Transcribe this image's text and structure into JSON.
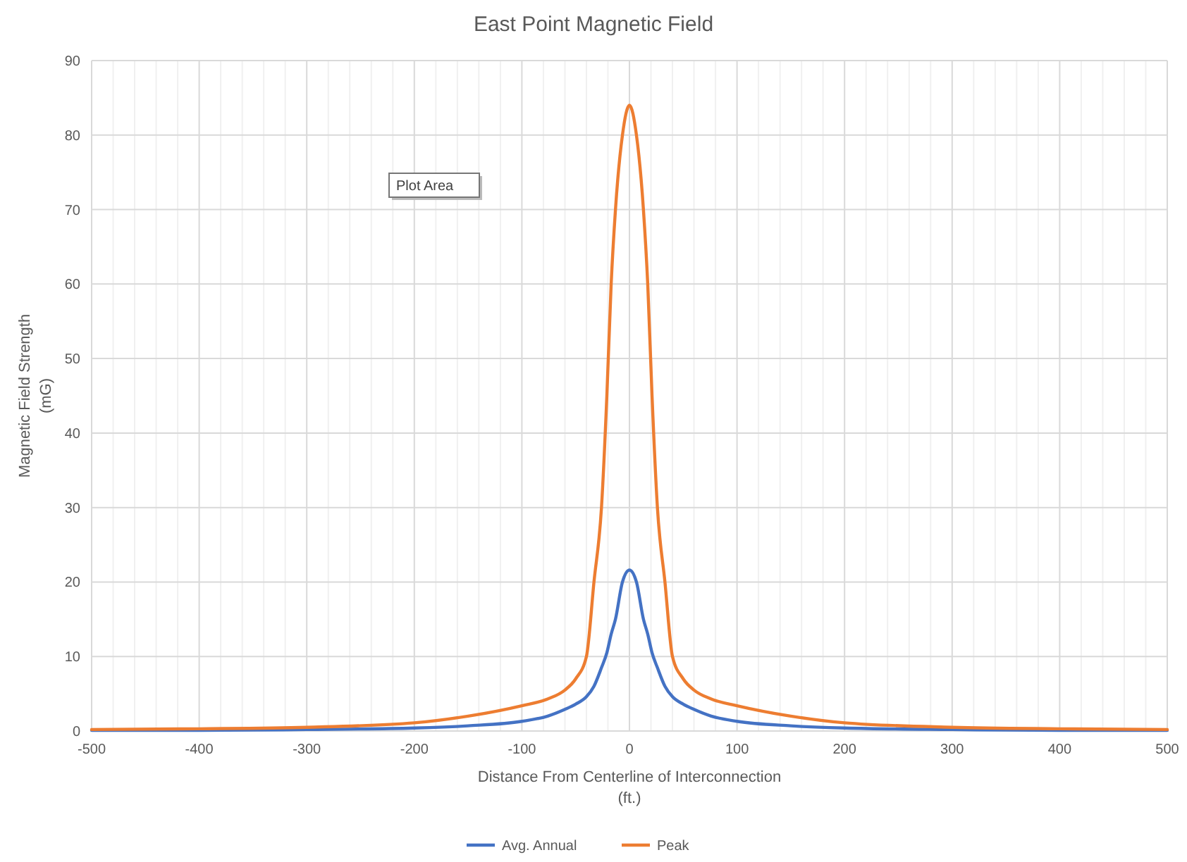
{
  "chart_data": {
    "type": "line",
    "title": "East Point Magnetic Field",
    "xlabel": "Distance From Centerline of Interconnection\n(ft.)",
    "ylabel": "Magnetic Field Strength\n(mG)",
    "x": [
      -500,
      -400,
      -300,
      -200,
      -150,
      -100,
      -76,
      -60,
      -50,
      -40,
      -33,
      -26,
      -21,
      -17,
      -13,
      -6.5,
      0,
      6.5,
      13,
      17,
      21,
      26,
      33,
      40,
      50,
      60,
      76,
      100,
      150,
      200,
      300,
      400,
      500
    ],
    "series": [
      {
        "name": "Avg. Annual",
        "color": "#4472c4",
        "values": [
          0.1,
          0.1,
          0.2,
          0.4,
          0.7,
          1.3,
          2,
          2.9,
          3.6,
          4.6,
          6,
          8.5,
          10.5,
          13,
          15,
          20,
          21.6,
          20,
          15,
          13,
          10.5,
          8.5,
          6,
          4.6,
          3.6,
          2.9,
          2,
          1.3,
          0.7,
          0.4,
          0.2,
          0.1,
          0.1
        ]
      },
      {
        "name": "Peak",
        "color": "#ed7d31",
        "values": [
          0.2,
          0.3,
          0.5,
          1.1,
          2,
          3.4,
          4.3,
          5.5,
          7,
          10,
          20,
          30,
          45,
          60,
          70,
          80,
          84,
          80,
          70,
          60,
          45,
          30,
          20,
          10,
          7,
          5.5,
          4.3,
          3.4,
          2,
          1.1,
          0.5,
          0.3,
          0.2
        ]
      }
    ],
    "xlim": [
      -500,
      500
    ],
    "xticks": [
      -500,
      {
        "value": -480,
        "label": null
      },
      {
        "value": -460,
        "label": null
      },
      {
        "value": -440,
        "label": null
      },
      {
        "value": -420,
        "label": null
      },
      -400,
      {
        "value": -380,
        "label": null
      },
      {
        "value": -360,
        "label": null
      },
      {
        "value": -340,
        "label": null
      },
      {
        "value": -320,
        "label": null
      },
      -300,
      {
        "value": -280,
        "label": null
      },
      {
        "value": -260,
        "label": null
      },
      {
        "value": -240,
        "label": null
      },
      {
        "value": -220,
        "label": null
      },
      -200,
      {
        "value": -180,
        "label": null
      },
      {
        "value": -160,
        "label": null
      },
      {
        "value": -140,
        "label": null
      },
      {
        "value": -120,
        "label": null
      },
      -100,
      {
        "value": -80,
        "label": null
      },
      {
        "value": -60,
        "label": null
      },
      {
        "value": -40,
        "label": null
      },
      {
        "value": -20,
        "label": null
      },
      0,
      {
        "value": 20,
        "label": null
      },
      {
        "value": 40,
        "label": null
      },
      {
        "value": 60,
        "label": null
      },
      {
        "value": 80,
        "label": null
      },
      100,
      {
        "value": 120,
        "label": null
      },
      {
        "value": 140,
        "label": null
      },
      {
        "value": 160,
        "label": null
      },
      {
        "value": 180,
        "label": null
      },
      200,
      {
        "value": 220,
        "label": null
      },
      {
        "value": 240,
        "label": null
      },
      {
        "value": 260,
        "label": null
      },
      {
        "value": 280,
        "label": null
      },
      300,
      {
        "value": 320,
        "label": null
      },
      {
        "value": 340,
        "label": null
      },
      {
        "value": 360,
        "label": null
      },
      {
        "value": 380,
        "label": null
      },
      400,
      {
        "value": 420,
        "label": null
      },
      {
        "value": 440,
        "label": null
      },
      {
        "value": 460,
        "label": null
      },
      {
        "value": 480,
        "label": null
      },
      500
    ],
    "ylim": [
      0,
      90
    ],
    "yticks": [
      0,
      10,
      20,
      30,
      40,
      50,
      60,
      70,
      80,
      90
    ],
    "grid": true,
    "legend": "bottom",
    "marker": "none",
    "line_style": "solid",
    "annotations": [
      "Plot Area"
    ]
  }
}
